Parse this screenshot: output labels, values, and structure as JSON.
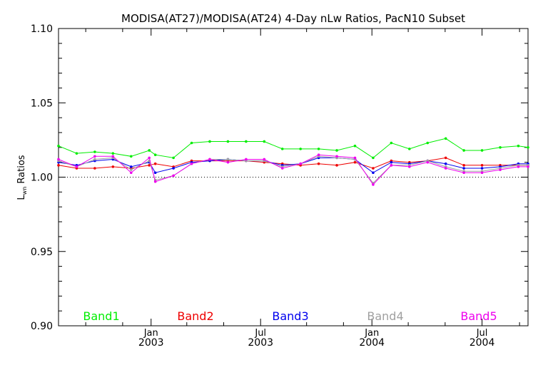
{
  "chart_data": {
    "type": "line",
    "title": "MODISA(AT27)/MODISA(AT24) 4-Day nLw Ratios, PacN10 Subset",
    "ylabel": {
      "main": "L",
      "sub": "wn",
      "rest": " Ratios"
    },
    "ylim": [
      0.9,
      1.1
    ],
    "yticks": [
      "0.90",
      "0.95",
      "1.00",
      "1.05",
      "1.10"
    ],
    "reference_line": 1.0,
    "x_range": [
      "2002-08-01",
      "2004-09-15"
    ],
    "x_ticks": [
      {
        "date": "2003-01-01",
        "month": "Jan",
        "year": "2003"
      },
      {
        "date": "2003-07-01",
        "month": "Jul",
        "year": "2003"
      },
      {
        "date": "2004-01-01",
        "month": "Jan",
        "year": "2004"
      },
      {
        "date": "2004-07-01",
        "month": "Jul",
        "year": "2004"
      }
    ],
    "x_minor_ticks": [
      "2002-09-15",
      "2002-11-15",
      "2003-03-01",
      "2003-05-01",
      "2003-09-15",
      "2003-11-15",
      "2004-03-01",
      "2004-05-01",
      "2004-09-01"
    ],
    "x": [
      "2002-08-01",
      "2002-08-31",
      "2002-09-30",
      "2002-10-30",
      "2002-11-29",
      "2002-12-29",
      "2003-01-08",
      "2003-02-07",
      "2003-03-09",
      "2003-04-08",
      "2003-05-08",
      "2003-06-07",
      "2003-07-07",
      "2003-08-06",
      "2003-09-05",
      "2003-10-05",
      "2003-11-04",
      "2003-12-04",
      "2004-01-03",
      "2004-02-02",
      "2004-03-03",
      "2004-04-02",
      "2004-05-02",
      "2004-06-01",
      "2004-07-01",
      "2004-07-31",
      "2004-08-30",
      "2004-09-15"
    ],
    "series": [
      {
        "name": "Band1",
        "color": "#00ee00",
        "values": [
          1.021,
          1.016,
          1.017,
          1.016,
          1.014,
          1.018,
          1.015,
          1.013,
          1.023,
          1.024,
          1.024,
          1.024,
          1.024,
          1.019,
          1.019,
          1.019,
          1.018,
          1.021,
          1.013,
          1.023,
          1.019,
          1.023,
          1.026,
          1.018,
          1.018,
          1.02,
          1.021,
          1.02
        ]
      },
      {
        "name": "Band2",
        "color": "#ee0000",
        "values": [
          1.008,
          1.006,
          1.006,
          1.007,
          1.006,
          1.008,
          1.009,
          1.007,
          1.011,
          1.011,
          1.011,
          1.011,
          1.01,
          1.009,
          1.008,
          1.009,
          1.008,
          1.01,
          1.006,
          1.011,
          1.01,
          1.011,
          1.013,
          1.008,
          1.008,
          1.008,
          1.008,
          1.008
        ]
      },
      {
        "name": "Band3",
        "color": "#0000ee",
        "values": [
          1.01,
          1.008,
          1.011,
          1.012,
          1.007,
          1.01,
          1.003,
          1.006,
          1.01,
          1.011,
          1.012,
          1.011,
          1.011,
          1.008,
          1.009,
          1.013,
          1.013,
          1.012,
          1.003,
          1.01,
          1.009,
          1.011,
          1.009,
          1.006,
          1.006,
          1.007,
          1.009,
          1.009
        ]
      },
      {
        "name": "Band4",
        "color": "#a0a0a0",
        "values": [
          1.011,
          1.007,
          1.012,
          1.013,
          1.005,
          1.011,
          0.998,
          1.001,
          1.009,
          1.012,
          1.012,
          1.011,
          1.011,
          1.007,
          1.009,
          1.014,
          1.013,
          1.012,
          0.996,
          1.008,
          1.008,
          1.011,
          1.007,
          1.004,
          1.004,
          1.006,
          1.008,
          1.008
        ]
      },
      {
        "name": "Band5",
        "color": "#ee00ee",
        "values": [
          1.012,
          1.007,
          1.014,
          1.014,
          1.003,
          1.013,
          0.997,
          1.001,
          1.009,
          1.012,
          1.01,
          1.012,
          1.012,
          1.006,
          1.009,
          1.015,
          1.014,
          1.013,
          0.995,
          1.008,
          1.007,
          1.01,
          1.006,
          1.003,
          1.003,
          1.005,
          1.007,
          1.007
        ]
      }
    ]
  }
}
